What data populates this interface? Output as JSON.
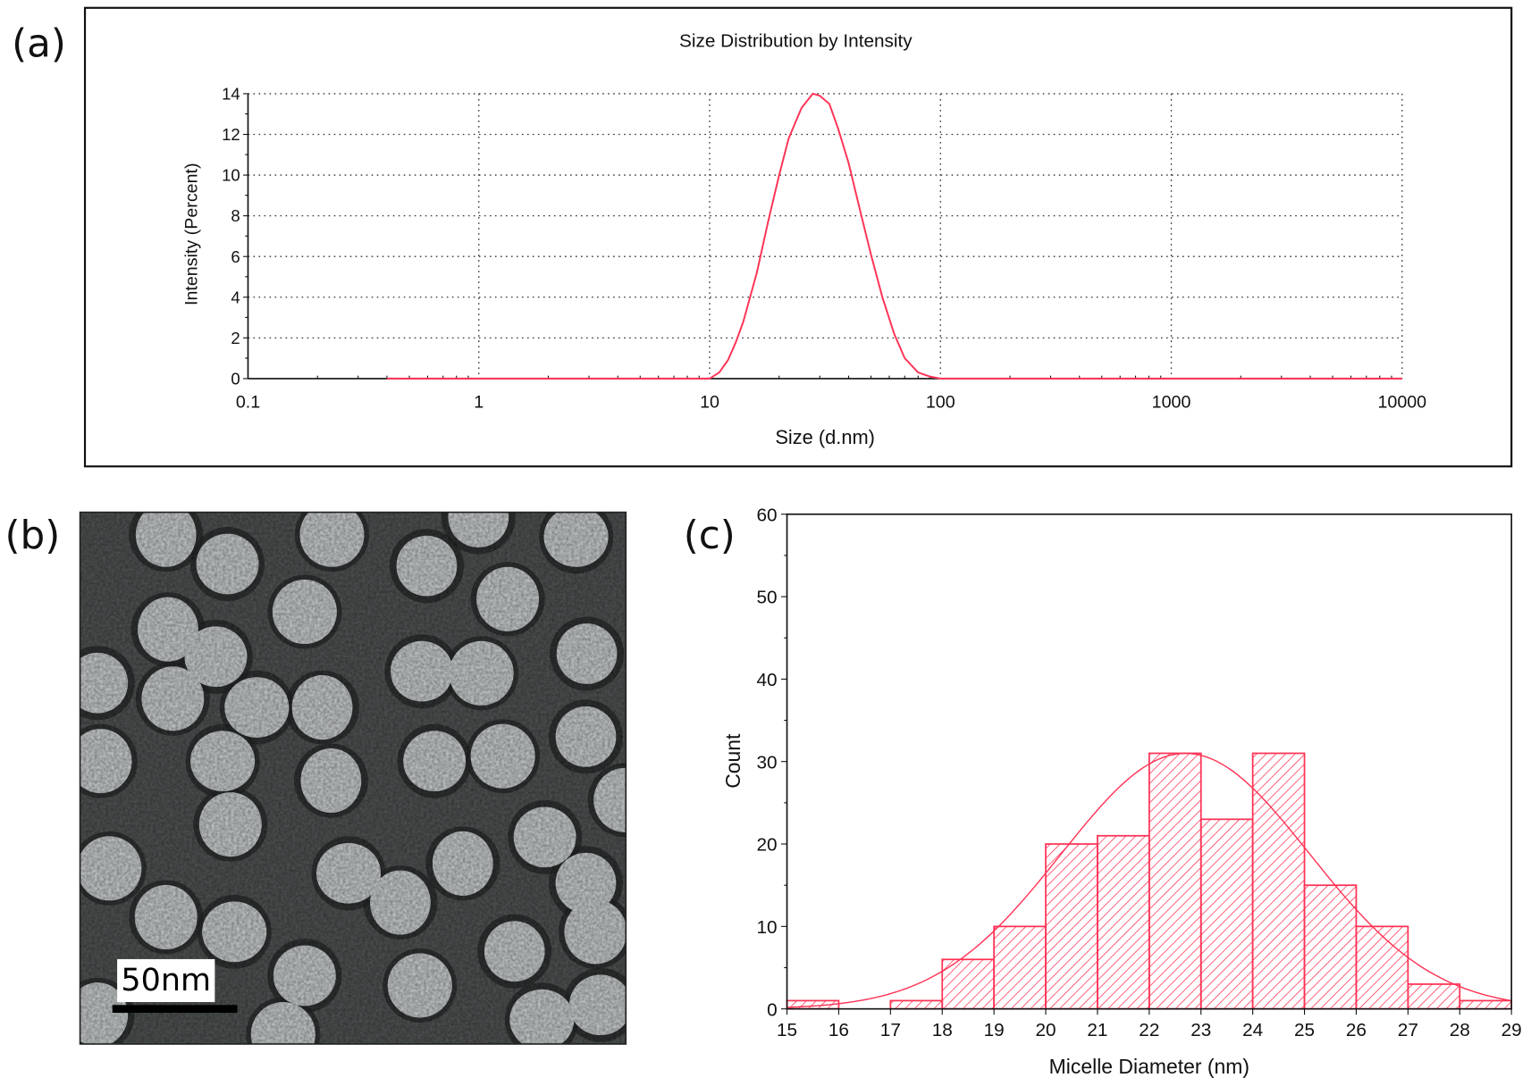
{
  "panel_labels": [
    "(a)",
    "(b)",
    "(c)"
  ],
  "chart_data": [
    {
      "type": "line",
      "title": "Size Distribution by Intensity",
      "xlabel": "Size (d.nm)",
      "ylabel": "Intensity (Percent)",
      "xscale": "log",
      "xlim": [
        0.1,
        10000
      ],
      "ylim": [
        0,
        14
      ],
      "xticks": [
        "0.1",
        "1",
        "10",
        "100",
        "1000",
        "10000"
      ],
      "yticks": [
        "0",
        "2",
        "4",
        "6",
        "8",
        "10",
        "12",
        "14"
      ],
      "grid": true,
      "line_color": "#ff3355",
      "series": [
        {
          "x": [
            0.4,
            1,
            5,
            10,
            11,
            12,
            13,
            14,
            16,
            18,
            20,
            22,
            25,
            28,
            30,
            33,
            36,
            40,
            45,
            50,
            56,
            63,
            70,
            80,
            90,
            100,
            1000,
            10000
          ],
          "y": [
            0,
            0,
            0,
            0,
            0.3,
            0.9,
            1.8,
            2.8,
            5.2,
            7.8,
            10,
            11.8,
            13.3,
            14,
            13.9,
            13.5,
            12.3,
            10.6,
            8.2,
            6.1,
            4,
            2.2,
            1,
            0.3,
            0.1,
            0,
            0,
            0
          ]
        }
      ]
    },
    {
      "type": "bar",
      "title": "",
      "xlabel": "Micelle Diameter (nm)",
      "ylabel": "Count",
      "xlim": [
        15,
        29
      ],
      "ylim": [
        0,
        60
      ],
      "xticks": [
        "15",
        "16",
        "17",
        "18",
        "19",
        "20",
        "21",
        "22",
        "23",
        "24",
        "25",
        "26",
        "27",
        "28",
        "29"
      ],
      "yticks": [
        "0",
        "10",
        "20",
        "30",
        "40",
        "50",
        "60"
      ],
      "bin_edges": [
        15,
        16,
        17,
        18,
        19,
        20,
        21,
        22,
        23,
        24,
        25,
        26,
        27,
        28,
        29
      ],
      "values": [
        1,
        0,
        1,
        6,
        10,
        20,
        21,
        31,
        23,
        31,
        15,
        10,
        3,
        1
      ],
      "fill": "diagonal-hatch",
      "color": "#ff3355",
      "fit": {
        "type": "gaussian",
        "center": 22.7,
        "sigma": 2.4,
        "peak": 31
      }
    }
  ],
  "tem_image": {
    "scale_bar_label": "50nm",
    "background": "#4a4d4d",
    "particle_color": "#b9bdbd"
  }
}
